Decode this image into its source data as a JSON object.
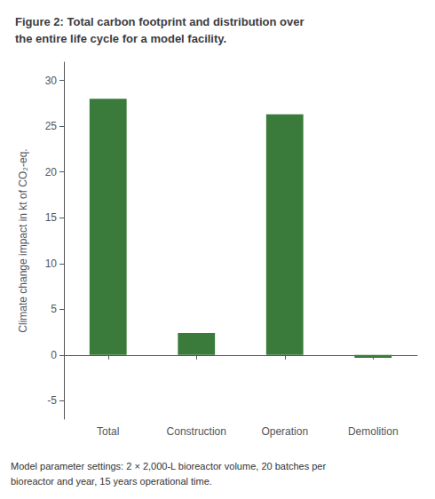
{
  "chart_data": {
    "type": "bar",
    "title": "Figure 2: Total carbon footprint and distribution over\nthe entire life cycle for a model facility.",
    "categories": [
      "Total",
      "Construction",
      "Operation",
      "Demolition"
    ],
    "values": [
      28.0,
      2.4,
      26.3,
      -0.3
    ],
    "color": "#3a7a3a",
    "ylabel": "Climate change impact in kt of CO₂-eq.",
    "ylim": [
      -7,
      32
    ],
    "yticks": [
      -5,
      0,
      5,
      10,
      15,
      20,
      25,
      30
    ],
    "grid": false,
    "annotations": [
      "Model parameter settings: 2 × 2,000-L bioreactor volume, 20 batches per\nbioreactor and year, 15 years operational time."
    ]
  }
}
